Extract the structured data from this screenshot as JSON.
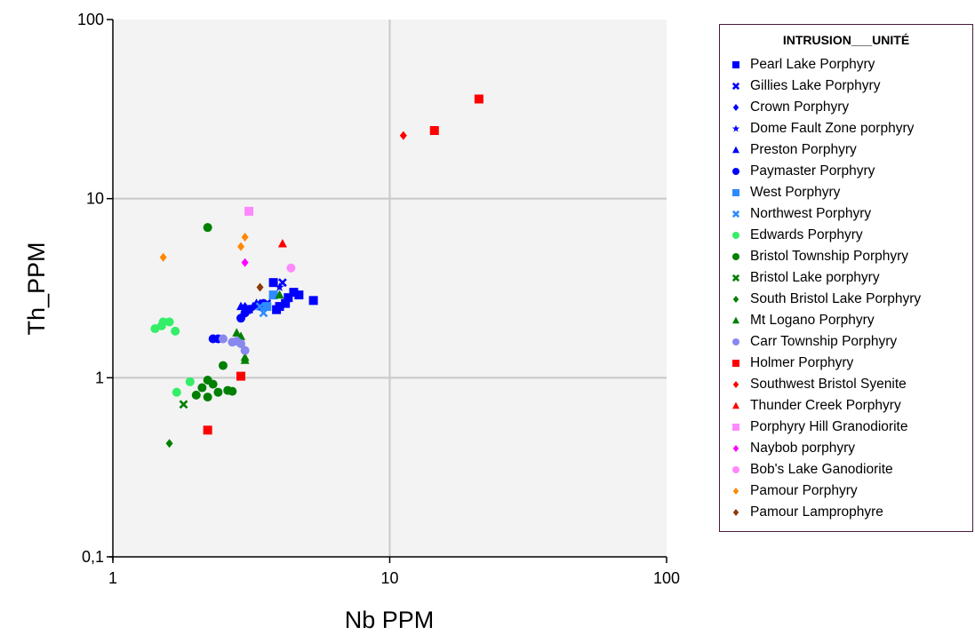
{
  "chart_data": {
    "type": "scatter",
    "title": "",
    "xlabel": "Nb  PPM",
    "ylabel": "Th_PPM",
    "x_scale": "log",
    "y_scale": "log",
    "xlim": [
      1,
      100
    ],
    "ylim": [
      0.1,
      100
    ],
    "x_ticks": [
      "1",
      "10",
      "100"
    ],
    "y_ticks": [
      "0,1",
      "1",
      "10",
      "100"
    ],
    "grid": true,
    "legend_title": "INTRUSION___UNITÉ",
    "legend_position": "right",
    "series": [
      {
        "name": "Pearl Lake Porphyry",
        "color": "#0000ff",
        "marker": "square",
        "points": [
          [
            3.8,
            3.4
          ],
          [
            4.0,
            2.5
          ],
          [
            4.5,
            3.0
          ],
          [
            4.7,
            2.9
          ],
          [
            5.3,
            2.7
          ],
          [
            4.2,
            2.6
          ],
          [
            3.9,
            2.4
          ],
          [
            4.3,
            2.8
          ]
        ]
      },
      {
        "name": "Gillies Lake Porphyry",
        "color": "#0000ff",
        "marker": "x",
        "points": [
          [
            4.1,
            3.4
          ],
          [
            3.6,
            2.6
          ],
          [
            3.3,
            2.5
          ]
        ]
      },
      {
        "name": "Crown Porphyry",
        "color": "#0000ff",
        "marker": "diamond",
        "points": [
          [
            3.0,
            2.5
          ],
          [
            3.4,
            2.6
          ]
        ]
      },
      {
        "name": "Dome Fault Zone porphyry",
        "color": "#0000ff",
        "marker": "star",
        "points": [
          [
            4.0,
            3.2
          ],
          [
            3.2,
            2.5
          ]
        ]
      },
      {
        "name": "Preston Porphyry",
        "color": "#0000ff",
        "marker": "triangle",
        "points": [
          [
            2.9,
            2.5
          ],
          [
            3.1,
            2.4
          ],
          [
            3.3,
            2.6
          ]
        ]
      },
      {
        "name": "Paymaster Porphyry",
        "color": "#0000ff",
        "marker": "circle",
        "points": [
          [
            2.3,
            1.65
          ],
          [
            2.4,
            1.65
          ],
          [
            2.9,
            2.15
          ],
          [
            3.0,
            2.3
          ],
          [
            3.1,
            2.4
          ],
          [
            3.5,
            2.6
          ]
        ]
      },
      {
        "name": "West Porphyry",
        "color": "#2e8bff",
        "marker": "square",
        "points": [
          [
            3.8,
            2.9
          ],
          [
            3.6,
            2.5
          ]
        ]
      },
      {
        "name": "Northwest Porphyry",
        "color": "#2e8bff",
        "marker": "x",
        "points": [
          [
            3.5,
            2.3
          ],
          [
            3.4,
            2.5
          ]
        ]
      },
      {
        "name": "Edwards Porphyry",
        "color": "#33ee66",
        "marker": "circle",
        "points": [
          [
            1.42,
            1.88
          ],
          [
            1.5,
            1.95
          ],
          [
            1.52,
            2.05
          ],
          [
            1.6,
            2.05
          ],
          [
            1.68,
            1.82
          ],
          [
            1.7,
            0.83
          ],
          [
            1.9,
            0.95
          ]
        ]
      },
      {
        "name": "Bristol Township Porphyry",
        "color": "#008000",
        "marker": "circle",
        "points": [
          [
            2.2,
            6.9
          ],
          [
            2.0,
            0.8
          ],
          [
            2.1,
            0.88
          ],
          [
            2.2,
            0.97
          ],
          [
            2.3,
            0.92
          ],
          [
            2.2,
            0.78
          ],
          [
            2.4,
            0.83
          ],
          [
            2.5,
            1.17
          ],
          [
            2.6,
            0.85
          ],
          [
            2.7,
            0.84
          ]
        ]
      },
      {
        "name": "Bristol Lake porphyry",
        "color": "#008000",
        "marker": "x",
        "points": [
          [
            1.8,
            0.71
          ]
        ]
      },
      {
        "name": "South Bristol Lake Porphyry",
        "color": "#008000",
        "marker": "diamond",
        "points": [
          [
            1.6,
            0.43
          ]
        ]
      },
      {
        "name": "Mt Logano Porphyry",
        "color": "#008000",
        "marker": "triangle",
        "points": [
          [
            2.8,
            1.78
          ],
          [
            2.9,
            1.7
          ],
          [
            3.0,
            1.3
          ],
          [
            3.0,
            1.25
          ],
          [
            4.0,
            2.9
          ]
        ]
      },
      {
        "name": "Carr Township Porphyry",
        "color": "#8888ee",
        "marker": "circle",
        "points": [
          [
            2.5,
            1.65
          ],
          [
            2.7,
            1.58
          ],
          [
            2.8,
            1.6
          ],
          [
            2.9,
            1.55
          ],
          [
            3.0,
            1.42
          ]
        ]
      },
      {
        "name": "Holmer Porphyry",
        "color": "#ff0000",
        "marker": "square",
        "points": [
          [
            2.2,
            0.51
          ],
          [
            2.9,
            1.02
          ],
          [
            14.5,
            24.0
          ],
          [
            21.0,
            36.0
          ]
        ]
      },
      {
        "name": "Southwest Bristol Syenite",
        "color": "#ff0000",
        "marker": "diamond",
        "points": [
          [
            11.2,
            22.5
          ]
        ]
      },
      {
        "name": "Thunder Creek Porphyry",
        "color": "#ff0000",
        "marker": "triangle",
        "points": [
          [
            4.1,
            5.6
          ]
        ]
      },
      {
        "name": "Porphyry Hill Granodiorite",
        "color": "#ff88ff",
        "marker": "square",
        "points": [
          [
            3.1,
            8.5
          ]
        ]
      },
      {
        "name": "Naybob porphyry",
        "color": "#ff00ff",
        "marker": "diamond",
        "points": [
          [
            3.0,
            4.4
          ]
        ]
      },
      {
        "name": "Bob's Lake Ganodiorite",
        "color": "#ff88ff",
        "marker": "circle",
        "points": [
          [
            4.4,
            4.1
          ]
        ]
      },
      {
        "name": "Pamour Porphyry",
        "color": "#ff8800",
        "marker": "diamond",
        "points": [
          [
            1.52,
            4.7
          ],
          [
            2.9,
            5.4
          ],
          [
            3.0,
            6.1
          ]
        ]
      },
      {
        "name": "Pamour Lamprophyre",
        "color": "#8b3a0a",
        "marker": "diamond",
        "points": [
          [
            3.4,
            3.2
          ]
        ]
      }
    ]
  }
}
